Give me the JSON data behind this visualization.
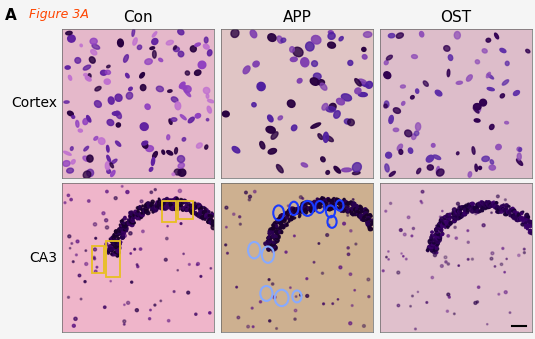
{
  "title_label": "A",
  "figure_label": "Figure 3A",
  "col_labels": [
    "Con",
    "APP",
    "OST"
  ],
  "row_labels": [
    "Cortex",
    "CA3"
  ],
  "background_color": "#f5f5f5",
  "label_color": "#000000",
  "figure_label_color": "#ff4500",
  "yellow_box_color": "#e8c020",
  "blue_circle_color": "#1a3aff",
  "light_blue_circle_color": "#88aaff",
  "cortex_con_bg": "#e8c0d0",
  "cortex_app_bg": "#e0c8c8",
  "cortex_ost_bg": "#ddc0c8",
  "ca3_con_bg": "#f0b8cc",
  "ca3_app_bg": "#d4b898",
  "ca3_ost_bg": "#e0c0cc"
}
